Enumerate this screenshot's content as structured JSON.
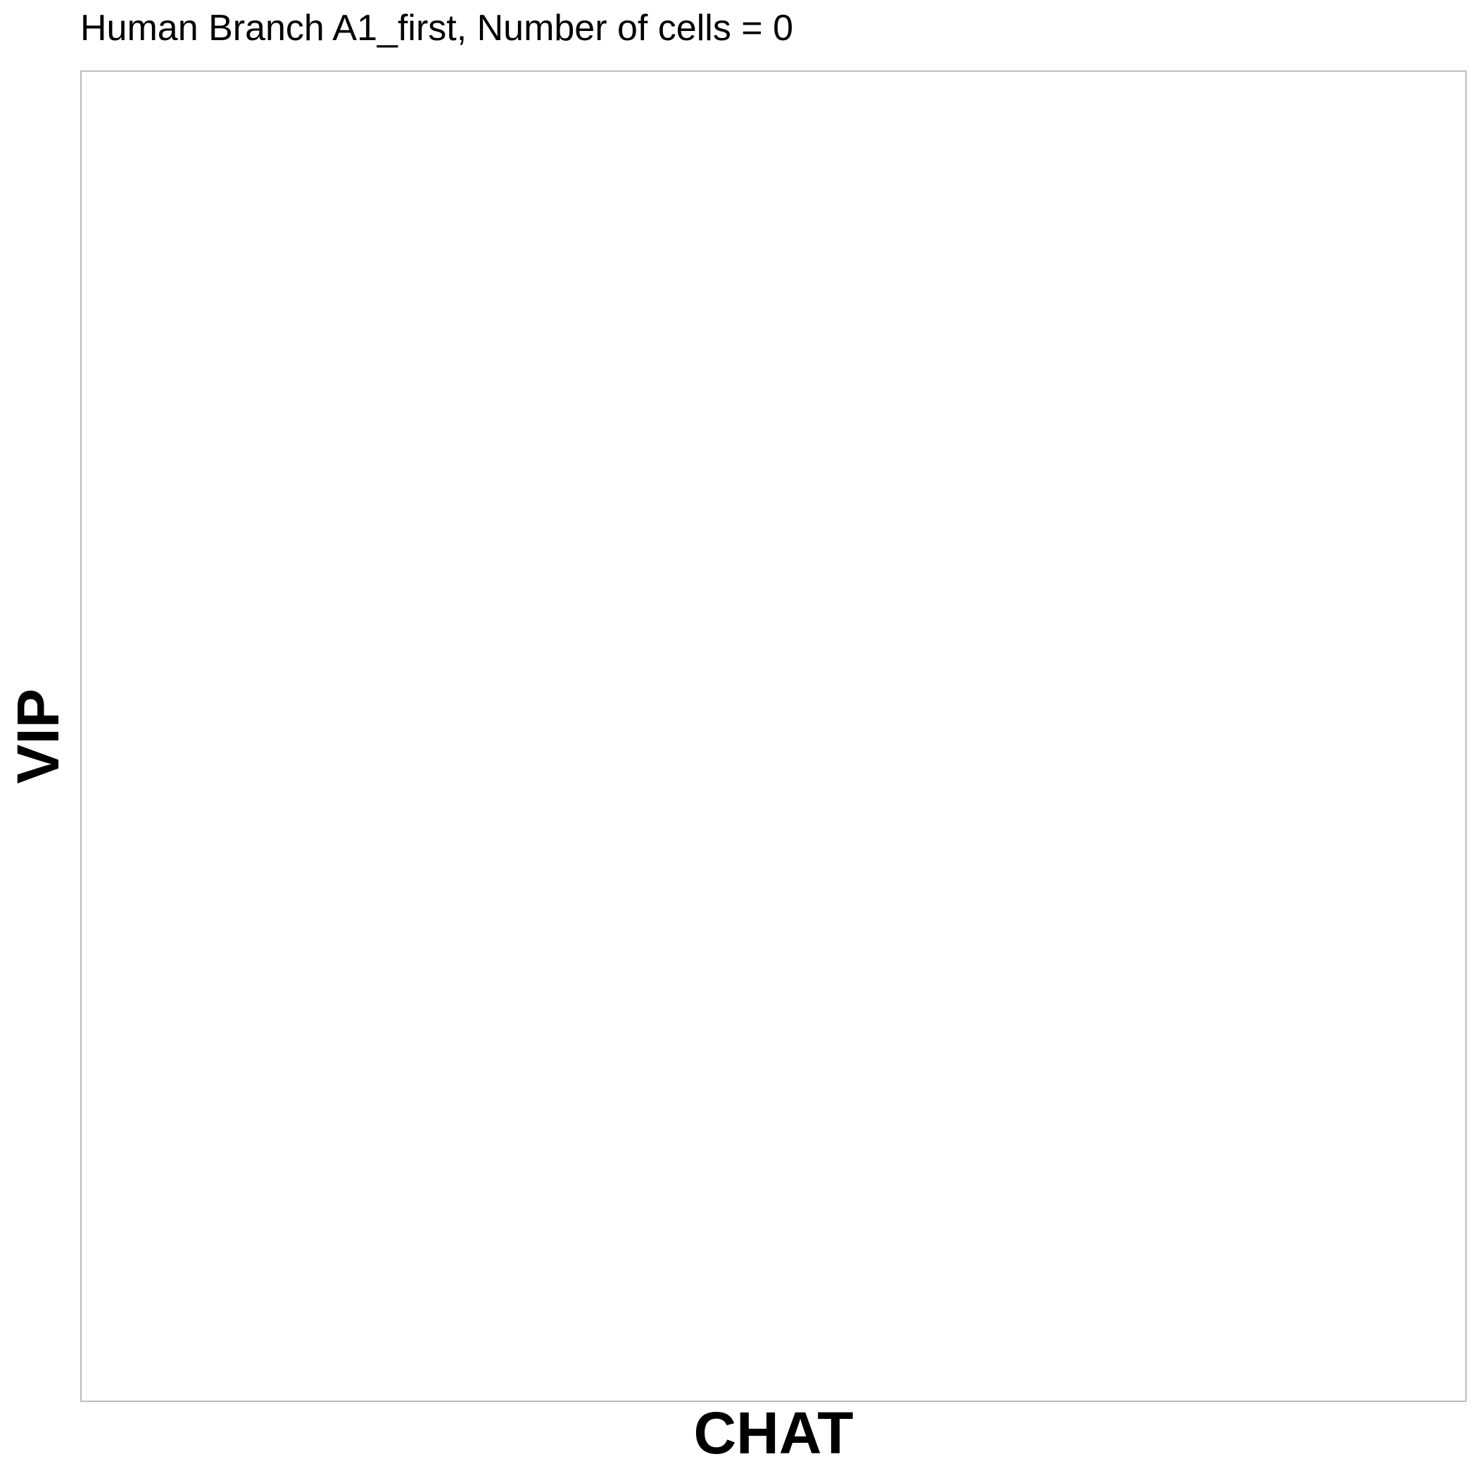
{
  "chart_data": {
    "type": "scatter",
    "title": "Human Branch A1_first, Number of cells = 0",
    "xlabel": "CHAT",
    "ylabel": "VIP",
    "series": [],
    "grid": false,
    "legend": "none"
  },
  "colors": {
    "panel_border": "#bdbdbd",
    "background": "#ffffff",
    "text": "#000000"
  }
}
